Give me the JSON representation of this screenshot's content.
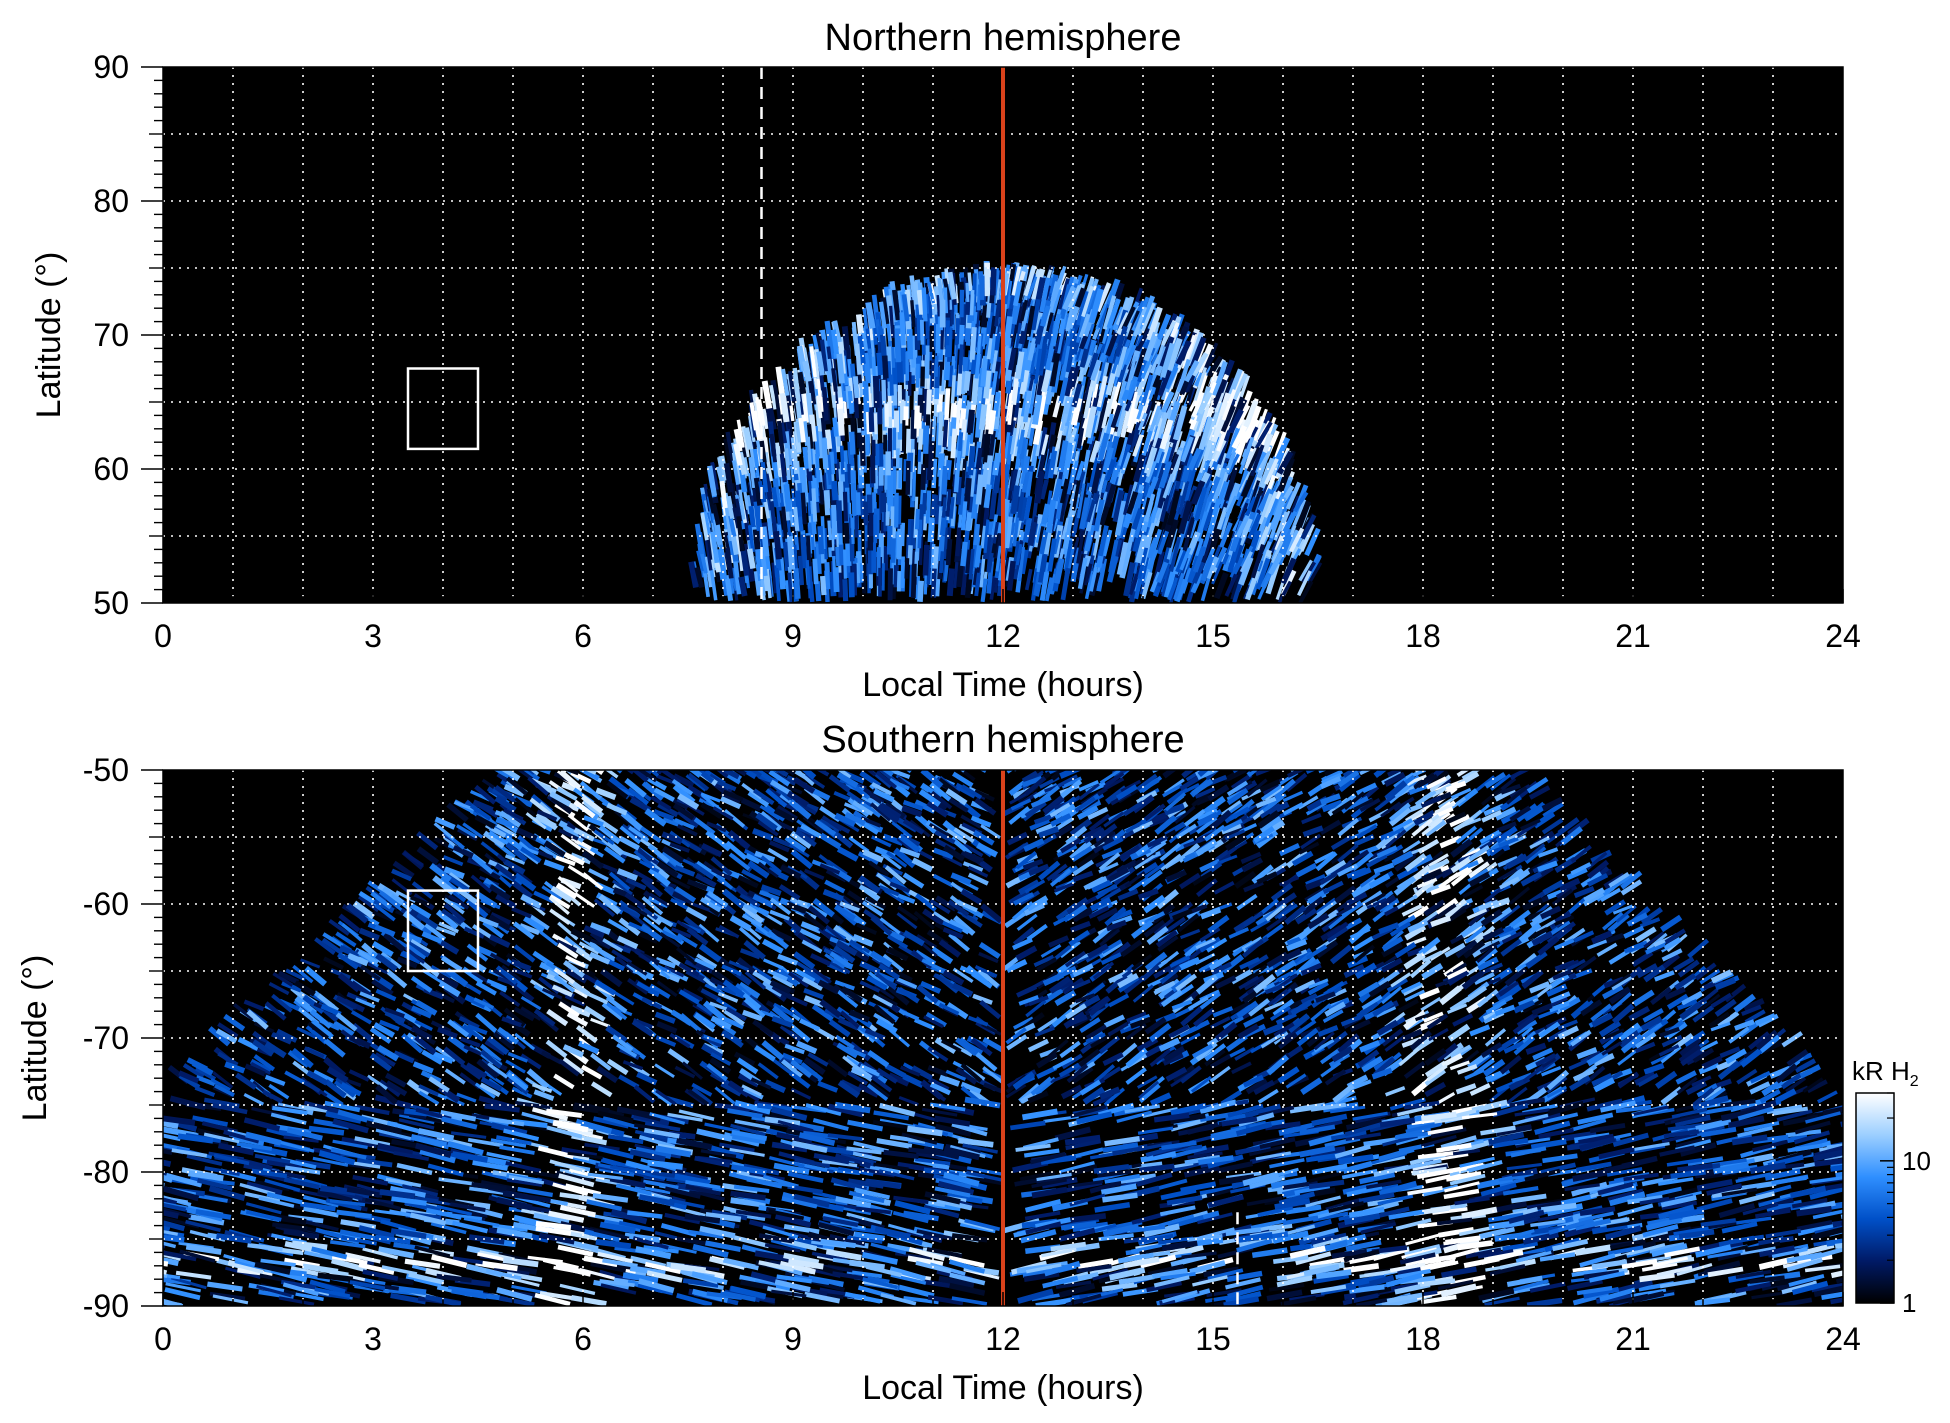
{
  "chart_data": [
    {
      "type": "heatmap",
      "id": "north",
      "title": "Northern hemisphere",
      "xlabel": "Local Time (hours)",
      "ylabel": "Latitude (°)",
      "xlim": [
        0,
        24
      ],
      "ylim": [
        50,
        90
      ],
      "xticks": [
        0,
        3,
        6,
        9,
        12,
        15,
        18,
        21,
        24
      ],
      "yticks": [
        50,
        60,
        70,
        80,
        90
      ],
      "grid": true,
      "grid_style": "dotted",
      "grid_x_step_hours": 1,
      "grid_y_step_deg": 5,
      "background_color": "#000000",
      "emission_region": {
        "center_lt": 12,
        "half_width_lt_at_equatorward_edge": 4.4,
        "equatorward_lat": 50,
        "poleward_lat": 73,
        "peak_band_lat": 63
      },
      "reference_lines": [
        {
          "name": "noon",
          "x": 12,
          "style": "solid",
          "color": "#d9421b"
        },
        {
          "name": "dashed-marker",
          "x": 8.55,
          "style": "dashed",
          "color": "#ffffff",
          "y_range": [
            50,
            90
          ]
        }
      ],
      "box": {
        "x": [
          3.5,
          4.5
        ],
        "y": [
          61.5,
          67.5
        ]
      }
    },
    {
      "type": "heatmap",
      "id": "south",
      "title": "Southern hemisphere",
      "xlabel": "Local Time (hours)",
      "ylabel": "Latitude (°)",
      "xlim": [
        0,
        24
      ],
      "ylim": [
        -90,
        -50
      ],
      "xticks": [
        0,
        3,
        6,
        9,
        12,
        15,
        18,
        21,
        24
      ],
      "yticks": [
        -90,
        -80,
        -70,
        -60,
        -50
      ],
      "grid": true,
      "grid_style": "dotted",
      "grid_x_step_hours": 1,
      "grid_y_step_deg": 5,
      "background_color": "#000000",
      "emission_region": {
        "dawn_edge_lt_at_-50": 5.0,
        "dusk_edge_lt_at_-50": 19.2,
        "full_width_lat": -75,
        "dawn_arc_lt": 6.0,
        "dusk_arc_lt": 18.2,
        "polar_arc_lat": -87
      },
      "reference_lines": [
        {
          "name": "noon",
          "x": 12,
          "style": "solid",
          "color": "#d9421b"
        },
        {
          "name": "dashed-marker",
          "x": 15.35,
          "style": "dashed",
          "color": "#ffffff",
          "y_range": [
            -90,
            -83
          ]
        }
      ],
      "box": {
        "x": [
          3.5,
          4.5
        ],
        "y": [
          -65,
          -59
        ]
      }
    }
  ],
  "colorbar": {
    "label": "kR H",
    "label_subscript": "2",
    "scale": "log",
    "range": [
      1,
      30
    ],
    "ticks": [
      1,
      10
    ],
    "tick_labels": [
      "1",
      "10"
    ],
    "colors": [
      "#000000",
      "#001a66",
      "#0050c8",
      "#2f8fff",
      "#9ccfff",
      "#ffffff"
    ]
  }
}
